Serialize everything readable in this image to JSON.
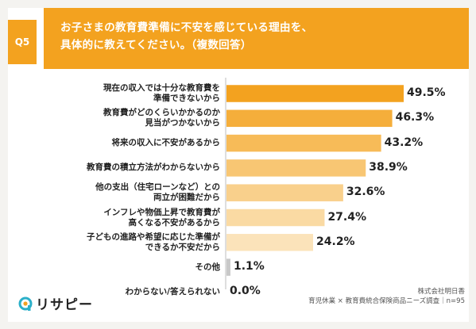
{
  "question": {
    "badge": "Q5",
    "line1": "お子さまの教育費準備に不安を感じている理由を、",
    "line2": "具体的に教えてください。（複数回答）"
  },
  "chart_data": {
    "type": "bar",
    "orientation": "horizontal",
    "unit": "%",
    "xlim": [
      0,
      50
    ],
    "categories": [
      [
        "現在の収入では十分な教育費を",
        "準備できないから"
      ],
      [
        "教育費がどのくらいかかるのか",
        "見当がつかないから"
      ],
      [
        "将来の収入に不安があるから"
      ],
      [
        "教育費の積立方法がわからないから"
      ],
      [
        "他の支出（住宅ローンなど）との",
        "両立が困難だから"
      ],
      [
        "インフレや物価上昇で教育費が",
        "高くなる不安があるから"
      ],
      [
        "子どもの進路や希望に応じた準備が",
        "できるか不安だから"
      ],
      [
        "その他"
      ],
      [
        "わからない/答えられない"
      ]
    ],
    "values": [
      49.5,
      46.3,
      43.2,
      38.9,
      32.6,
      27.4,
      24.2,
      1.1,
      0.0
    ],
    "value_labels": [
      "49.5%",
      "46.3%",
      "43.2%",
      "38.9%",
      "32.6%",
      "27.4%",
      "24.2%",
      "1.1%",
      "0.0%"
    ],
    "colors": [
      "#f3a21f",
      "#f5ae3b",
      "#f7bb58",
      "#f8c673",
      "#f9d08c",
      "#fadaa3",
      "#fbe3ba",
      "#c8c8c8",
      "#c8c8c8"
    ]
  },
  "footer": {
    "logo_text": "リサピー",
    "source_line1": "株式会社明日香",
    "source_line2": "育児休業 × 教育費統合保険商品ニーズ調査｜n=95"
  }
}
